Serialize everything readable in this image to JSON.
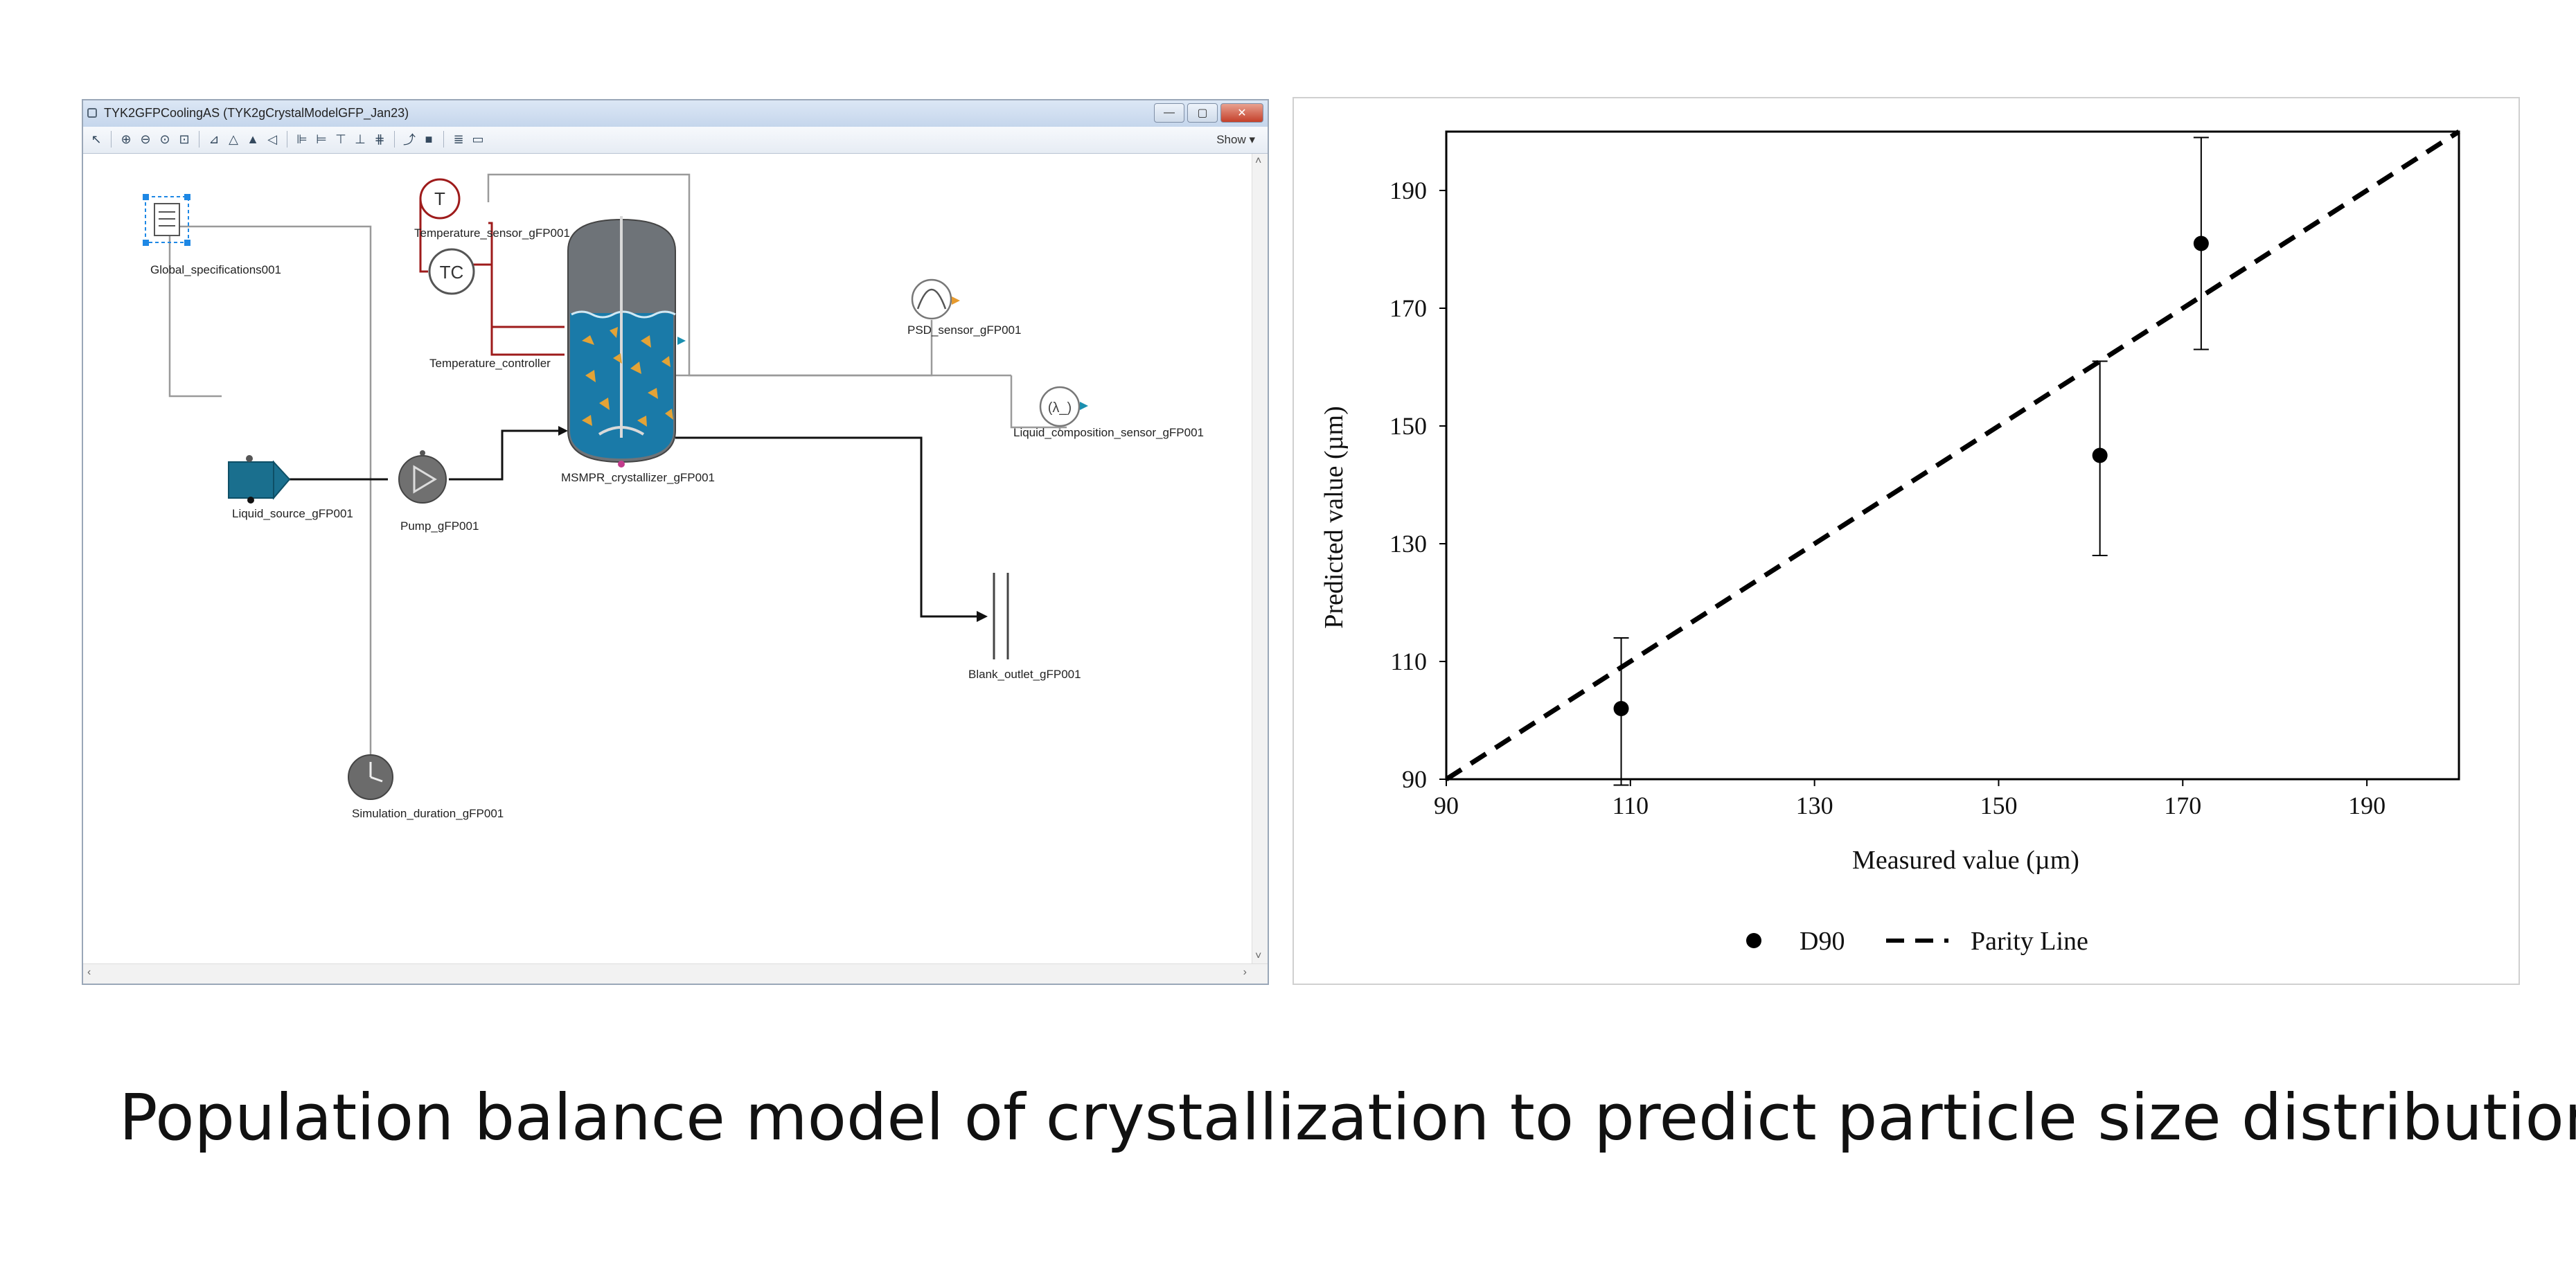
{
  "window": {
    "title": "TYK2GFPCoolingAS  (TYK2gCrystalModelGFP_Jan23)",
    "show_label": "Show ▾",
    "buttons": {
      "minimize": "—",
      "maximize": "▢",
      "close": "✕"
    }
  },
  "toolbar": {
    "icons": [
      "pointer-icon",
      "zoom-in-icon",
      "zoom-out-icon",
      "zoom-fit-icon",
      "zoom-extent-icon",
      "align-left-icon",
      "align-center-icon",
      "align-right-icon",
      "distribute-icon",
      "layout-a-icon",
      "layout-b-icon",
      "layout-c-icon",
      "layout-d-icon",
      "layout-e-icon",
      "connector-icon",
      "stop-icon",
      "stack-icon",
      "window-icon"
    ]
  },
  "flowsheet": {
    "nodes": {
      "global_spec": "Global_specifications001",
      "temp_sensor": "Temperature_sensor_gFP001",
      "temp_controller": "Temperature_controller",
      "crystallizer": "MSMPR_crystallizer_gFP001",
      "psd_sensor": "PSD_sensor_gFP001",
      "liquid_comp_sensor": "Liquid_composition_sensor_gFP001",
      "liquid_source": "Liquid_source_gFP001",
      "pump": "Pump_gFP001",
      "outlet": "Blank_outlet_gFP001",
      "sim_duration": "Simulation_duration_gFP001"
    },
    "symbols": {
      "temp_sensor": "T",
      "temp_controller": "TC",
      "liquid_comp_sensor": "(λ_)"
    }
  },
  "chart_data": {
    "type": "scatter",
    "xlabel": "Measured value (µm)",
    "ylabel": "Predicted value (µm)",
    "xlim": [
      90,
      200
    ],
    "ylim": [
      90,
      200
    ],
    "xticks": [
      90,
      110,
      130,
      150,
      170,
      190
    ],
    "yticks": [
      90,
      110,
      130,
      150,
      170,
      190
    ],
    "grid": false,
    "legend_position": "bottom",
    "series": [
      {
        "name": "D90",
        "marker": "filled-circle",
        "color": "#000000",
        "x": [
          109,
          161,
          172
        ],
        "y": [
          102,
          145,
          181
        ],
        "error_low": [
          89,
          128,
          163
        ],
        "error_high": [
          114,
          161,
          199
        ]
      },
      {
        "name": "Parity Line",
        "style": "dashed",
        "color": "#000000",
        "x": [
          90,
          200
        ],
        "y": [
          90,
          200
        ]
      }
    ]
  },
  "caption": "Population balance model of crystallization to predict particle size distribution"
}
